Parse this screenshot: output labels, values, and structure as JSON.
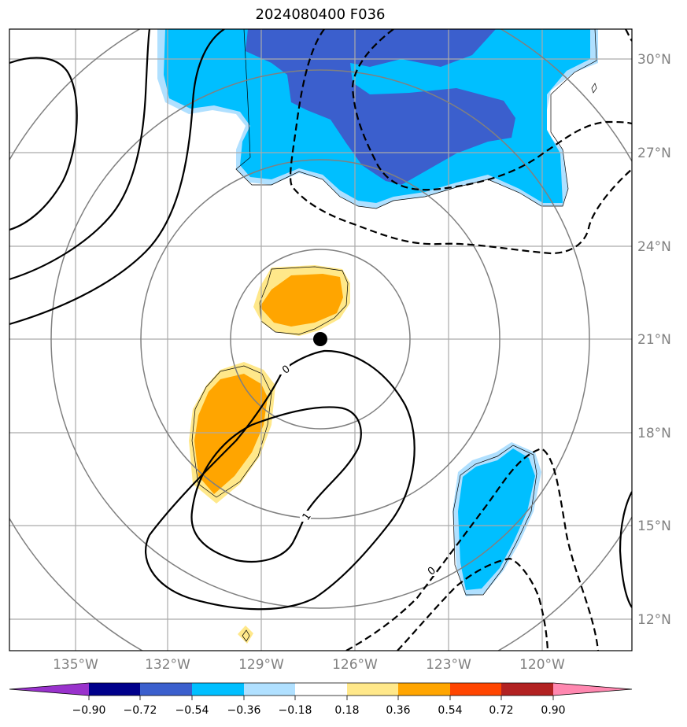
{
  "title": "2024080400 F036",
  "map": {
    "lat_labels": [
      "30°N",
      "27°N",
      "24°N",
      "21°N",
      "18°N",
      "15°N",
      "12°N"
    ],
    "lon_labels": [
      "135°W",
      "132°W",
      "129°W",
      "126°W",
      "123°W",
      "120°W"
    ],
    "contour_labels": [
      "0",
      "1",
      "0"
    ],
    "storm_center": {
      "lat": 21.0,
      "lon": -127.2
    },
    "range_rings": 4,
    "lat_range": [
      11,
      31
    ],
    "lon_range": [
      -137,
      -117
    ]
  },
  "colorbar": {
    "tick_labels": [
      "−0.90",
      "−0.72",
      "−0.54",
      "−0.36",
      "−0.18",
      "0.18",
      "0.36",
      "0.54",
      "0.72",
      "0.90"
    ],
    "colors": [
      "#9932cc",
      "#00008b",
      "#3b5fcd",
      "#00bfff",
      "#b0e0ff",
      "#ffffff",
      "#ffe88a",
      "#ffa500",
      "#ff4500",
      "#b22222",
      "#ff88b0"
    ],
    "extend": "both"
  }
}
